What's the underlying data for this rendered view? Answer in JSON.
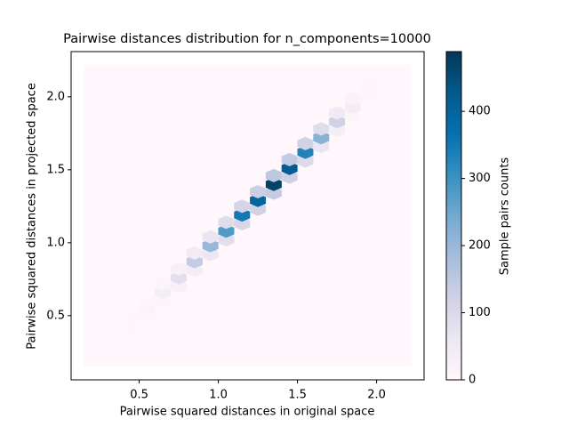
{
  "chart_data": {
    "type": "hexbin",
    "title": "Pairwise distances distribution for n_components=10000",
    "xlabel": "Pairwise squared distances in original space",
    "ylabel": "Pairwise squared distances in projected space",
    "colorbar_label": "Sample pairs counts",
    "xlim": [
      0.07,
      2.3
    ],
    "ylim": [
      0.06,
      2.31
    ],
    "xticks": [
      {
        "value": 0.5,
        "label": "0.5"
      },
      {
        "value": 1.0,
        "label": "1.0"
      },
      {
        "value": 1.5,
        "label": "1.5"
      },
      {
        "value": 2.0,
        "label": "2.0"
      }
    ],
    "yticks": [
      {
        "value": 0.5,
        "label": "0.5"
      },
      {
        "value": 1.0,
        "label": "1.0"
      },
      {
        "value": 1.5,
        "label": "1.5"
      },
      {
        "value": 2.0,
        "label": "2.0"
      }
    ],
    "clim": [
      0,
      489
    ],
    "cticks": [
      0,
      100,
      200,
      300,
      400
    ],
    "extent": [
      0.15,
      2.22,
      0.15,
      2.22
    ],
    "colormap": [
      "#fff7fb",
      "#ece7f2",
      "#d0d1e6",
      "#a6bddb",
      "#74a9cf",
      "#3690c0",
      "#0570b0",
      "#045a8d",
      "#023858"
    ],
    "x": [
      0.45,
      0.45,
      0.45,
      0.55,
      0.55,
      0.55,
      0.65,
      0.65,
      0.65,
      0.75,
      0.75,
      0.75,
      0.85,
      0.85,
      0.85,
      0.95,
      0.95,
      0.95,
      1.05,
      1.05,
      1.05,
      1.15,
      1.15,
      1.15,
      1.25,
      1.25,
      1.25,
      1.35,
      1.35,
      1.35,
      1.45,
      1.45,
      1.45,
      1.55,
      1.55,
      1.55,
      1.65,
      1.65,
      1.65,
      1.75,
      1.75,
      1.75,
      1.85,
      1.85,
      1.85,
      1.95,
      1.95,
      1.95
    ],
    "y": [
      0.39,
      0.45,
      0.51,
      0.49,
      0.55,
      0.61,
      0.6,
      0.66,
      0.72,
      0.7,
      0.76,
      0.82,
      0.81,
      0.87,
      0.93,
      0.92,
      0.98,
      1.04,
      1.02,
      1.08,
      1.14,
      1.13,
      1.19,
      1.25,
      1.23,
      1.29,
      1.35,
      1.34,
      1.4,
      1.46,
      1.45,
      1.51,
      1.57,
      1.56,
      1.62,
      1.68,
      1.66,
      1.72,
      1.78,
      1.77,
      1.83,
      1.89,
      1.87,
      1.93,
      1.99,
      1.98,
      2.04,
      2.1
    ],
    "counts": [
      2,
      5,
      2,
      5,
      15,
      5,
      12,
      40,
      12,
      25,
      80,
      25,
      40,
      140,
      45,
      60,
      200,
      65,
      85,
      280,
      90,
      105,
      350,
      110,
      120,
      400,
      130,
      140,
      470,
      150,
      125,
      420,
      140,
      95,
      330,
      120,
      65,
      220,
      90,
      35,
      120,
      50,
      12,
      40,
      18,
      3,
      8,
      4
    ]
  }
}
